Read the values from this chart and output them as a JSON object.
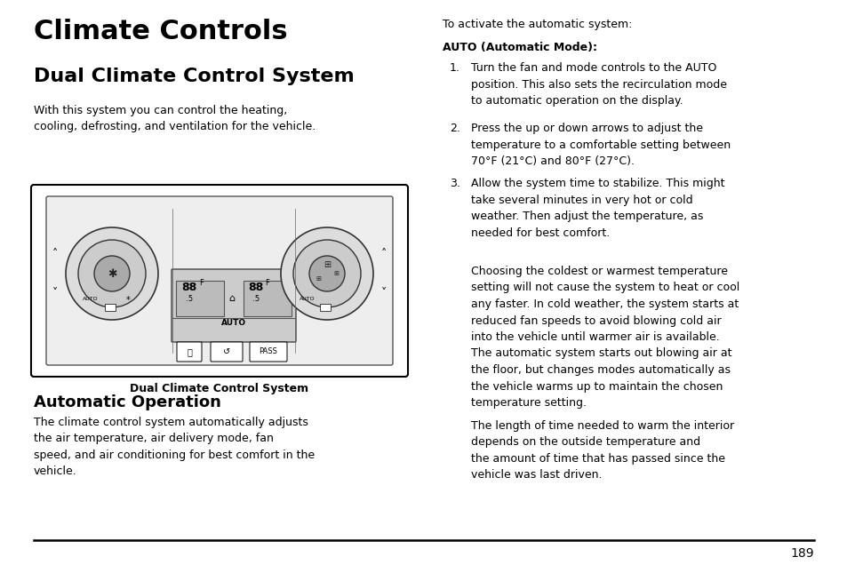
{
  "background_color": "#ffffff",
  "page_number": "189",
  "title_main": "Climate Controls",
  "section1_title": "Dual Climate Control System",
  "section1_body": "With this system you can control the heating,\ncooling, defrosting, and ventilation for the vehicle.",
  "image_caption": "Dual Climate Control System",
  "section2_title": "Automatic Operation",
  "section2_body": "The climate control system automatically adjusts\nthe air temperature, air delivery mode, fan\nspeed, and air conditioning for best comfort in the\nvehicle.",
  "right_intro": "To activate the automatic system:",
  "auto_label": "AUTO (Automatic Mode):",
  "step1_num": "1.",
  "step1_text": "Turn the fan and mode controls to the AUTO\nposition. This also sets the recirculation mode\nto automatic operation on the display.",
  "step2_num": "2.",
  "step2_text": "Press the up or down arrows to adjust the\ntemperature to a comfortable setting between\n70°F (21°C) and 80°F (27°C).",
  "step3_num": "3.",
  "step3_text": "Allow the system time to stabilize. This might\ntake several minutes in very hot or cold\nweather. Then adjust the temperature, as\nneeded for best comfort.",
  "para1_text": "Choosing the coldest or warmest temperature\nsetting will not cause the system to heat or cool\nany faster. In cold weather, the system starts at\nreduced fan speeds to avoid blowing cold air\ninto the vehicle until warmer air is available.\nThe automatic system starts out blowing air at\nthe floor, but changes modes automatically as\nthe vehicle warms up to maintain the chosen\ntemperature setting.",
  "para2_text": "The length of time needed to warm the interior\ndepends on the outside temperature and\nthe amount of time that has passed since the\nvehicle was last driven."
}
